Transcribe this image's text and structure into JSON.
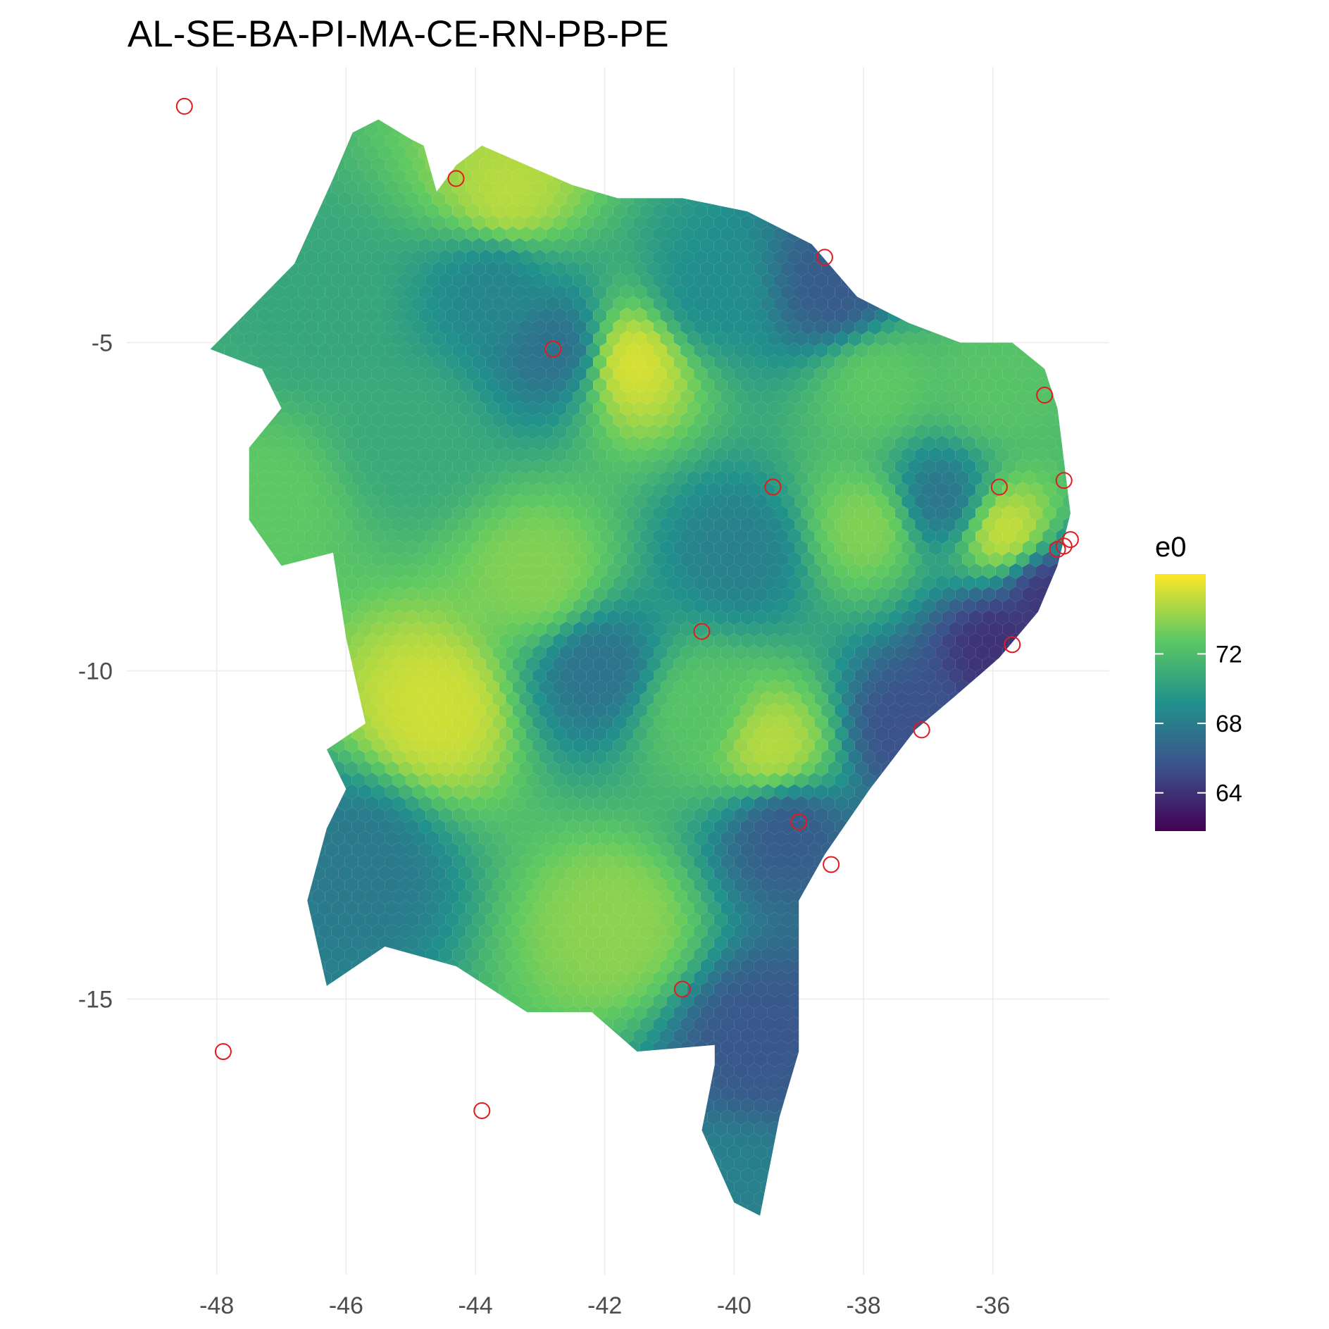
{
  "title": "AL-SE-BA-PI-MA-CE-RN-PB-PE",
  "colors": {
    "viridis": [
      "#440154",
      "#3b528b",
      "#21918c",
      "#5ec962",
      "#fde725"
    ],
    "marker": "#e31a1c",
    "grid": "#ebebeb"
  },
  "chart_data": {
    "type": "heatmap",
    "geometry": "hexbin",
    "xlim": [
      -49.5,
      -34.2
    ],
    "ylim": [
      -19.2,
      -0.8
    ],
    "x_ticks": [
      -48,
      -46,
      -44,
      -42,
      -40,
      -38,
      -36
    ],
    "x_tick_labels": [
      "-48",
      "-46",
      "-44",
      "-42",
      "-40",
      "-38",
      "-36"
    ],
    "y_ticks": [
      -5,
      -10,
      -15
    ],
    "y_tick_labels": [
      "-5",
      "-10",
      "-15"
    ],
    "grid": true,
    "legend": {
      "title": "e0",
      "position": "right",
      "range": [
        61.8,
        76.6
      ],
      "breaks": [
        64,
        68,
        72
      ],
      "break_labels": [
        "64",
        "68",
        "72"
      ],
      "palette": "viridis"
    },
    "region_outline": [
      [
        -44.6,
        -2.7
      ],
      [
        -44.3,
        -2.3
      ],
      [
        -43.9,
        -2.0
      ],
      [
        -42.5,
        -2.6
      ],
      [
        -41.8,
        -2.8
      ],
      [
        -40.8,
        -2.8
      ],
      [
        -39.8,
        -3.0
      ],
      [
        -38.8,
        -3.5
      ],
      [
        -38.1,
        -4.3
      ],
      [
        -37.3,
        -4.7
      ],
      [
        -36.5,
        -5.0
      ],
      [
        -35.7,
        -5.0
      ],
      [
        -35.2,
        -5.4
      ],
      [
        -35.0,
        -6.0
      ],
      [
        -34.9,
        -6.8
      ],
      [
        -34.8,
        -7.6
      ],
      [
        -35.0,
        -8.4
      ],
      [
        -35.3,
        -9.1
      ],
      [
        -35.9,
        -9.8
      ],
      [
        -36.6,
        -10.4
      ],
      [
        -37.2,
        -10.9
      ],
      [
        -37.9,
        -11.8
      ],
      [
        -38.6,
        -12.8
      ],
      [
        -39.0,
        -13.5
      ],
      [
        -39.0,
        -14.8
      ],
      [
        -39.0,
        -15.8
      ],
      [
        -39.3,
        -16.8
      ],
      [
        -39.6,
        -18.3
      ],
      [
        -40.0,
        -18.1
      ],
      [
        -40.5,
        -17.0
      ],
      [
        -40.3,
        -16.0
      ],
      [
        -40.3,
        -15.7
      ],
      [
        -41.5,
        -15.8
      ],
      [
        -42.2,
        -15.2
      ],
      [
        -43.2,
        -15.2
      ],
      [
        -44.3,
        -14.5
      ],
      [
        -45.4,
        -14.2
      ],
      [
        -46.3,
        -14.8
      ],
      [
        -46.6,
        -13.5
      ],
      [
        -46.3,
        -12.4
      ],
      [
        -46.0,
        -11.8
      ],
      [
        -46.3,
        -11.2
      ],
      [
        -45.7,
        -10.8
      ],
      [
        -46.0,
        -9.5
      ],
      [
        -46.2,
        -8.2
      ],
      [
        -47.0,
        -8.4
      ],
      [
        -47.5,
        -7.7
      ],
      [
        -47.5,
        -6.6
      ],
      [
        -47.0,
        -6.0
      ],
      [
        -47.3,
        -5.4
      ],
      [
        -48.1,
        -5.1
      ],
      [
        -47.6,
        -4.6
      ],
      [
        -46.8,
        -3.8
      ],
      [
        -46.2,
        -2.5
      ],
      [
        -45.9,
        -1.8
      ],
      [
        -45.5,
        -1.6
      ],
      [
        -45.0,
        -1.9
      ],
      [
        -44.8,
        -2.0
      ],
      [
        -44.6,
        -2.7
      ]
    ],
    "value_field_centers": [
      {
        "lon": -41.6,
        "lat": -5.3,
        "e0": 75.8
      },
      {
        "lon": -43.5,
        "lat": -2.8,
        "e0": 75.0
      },
      {
        "lon": -44.6,
        "lat": -10.6,
        "e0": 75.5
      },
      {
        "lon": -39.4,
        "lat": -11.2,
        "e0": 75.0
      },
      {
        "lon": -43.0,
        "lat": -8.6,
        "e0": 73.8
      },
      {
        "lon": -41.8,
        "lat": -13.9,
        "e0": 74.0
      },
      {
        "lon": -37.9,
        "lat": -7.8,
        "e0": 73.8
      },
      {
        "lon": -35.8,
        "lat": -7.9,
        "e0": 75.5
      },
      {
        "lon": -47.2,
        "lat": -7.5,
        "e0": 72.8
      },
      {
        "lon": -42.7,
        "lat": -5.1,
        "e0": 67.2
      },
      {
        "lon": -42.1,
        "lat": -10.0,
        "e0": 67.4
      },
      {
        "lon": -39.9,
        "lat": -8.2,
        "e0": 68.2
      },
      {
        "lon": -39.2,
        "lat": -12.4,
        "e0": 66.0
      },
      {
        "lon": -39.6,
        "lat": -15.6,
        "e0": 65.8
      },
      {
        "lon": -45.8,
        "lat": -12.9,
        "e0": 67.8
      },
      {
        "lon": -35.2,
        "lat": -8.8,
        "e0": 64.2
      },
      {
        "lon": -35.9,
        "lat": -9.6,
        "e0": 64.0
      },
      {
        "lon": -37.3,
        "lat": -10.9,
        "e0": 65.5
      },
      {
        "lon": -38.4,
        "lat": -4.2,
        "e0": 66.0
      },
      {
        "lon": -36.8,
        "lat": -7.4,
        "e0": 67.5
      },
      {
        "lon": -43.7,
        "lat": -4.1,
        "e0": 68.5
      },
      {
        "lon": -40.4,
        "lat": -4.3,
        "e0": 69.0
      },
      {
        "lon": -46.5,
        "lat": -4.5,
        "e0": 70.6
      },
      {
        "lon": -45.0,
        "lat": -6.5,
        "e0": 70.8
      },
      {
        "lon": -40.6,
        "lat": -10.6,
        "e0": 72.5
      },
      {
        "lon": -40.0,
        "lat": -18.0,
        "e0": 68.2
      },
      {
        "lon": -37.8,
        "lat": -5.6,
        "e0": 72.8
      },
      {
        "lon": -36.0,
        "lat": -5.7,
        "e0": 72.5
      }
    ],
    "marked_points": [
      {
        "lon": -48.5,
        "lat": -1.4
      },
      {
        "lon": -44.3,
        "lat": -2.5
      },
      {
        "lon": -38.6,
        "lat": -3.7
      },
      {
        "lon": -42.8,
        "lat": -5.1
      },
      {
        "lon": -35.2,
        "lat": -5.8
      },
      {
        "lon": -34.9,
        "lat": -7.1
      },
      {
        "lon": -35.9,
        "lat": -7.2
      },
      {
        "lon": -39.4,
        "lat": -7.2
      },
      {
        "lon": -34.8,
        "lat": -8.0
      },
      {
        "lon": -34.9,
        "lat": -8.1
      },
      {
        "lon": -35.0,
        "lat": -8.15
      },
      {
        "lon": -40.5,
        "lat": -9.4
      },
      {
        "lon": -35.7,
        "lat": -9.6
      },
      {
        "lon": -37.1,
        "lat": -10.9
      },
      {
        "lon": -39.0,
        "lat": -12.3
      },
      {
        "lon": -38.5,
        "lat": -12.95
      },
      {
        "lon": -40.8,
        "lat": -14.85
      },
      {
        "lon": -47.9,
        "lat": -15.8
      },
      {
        "lon": -43.9,
        "lat": -16.7
      }
    ]
  }
}
